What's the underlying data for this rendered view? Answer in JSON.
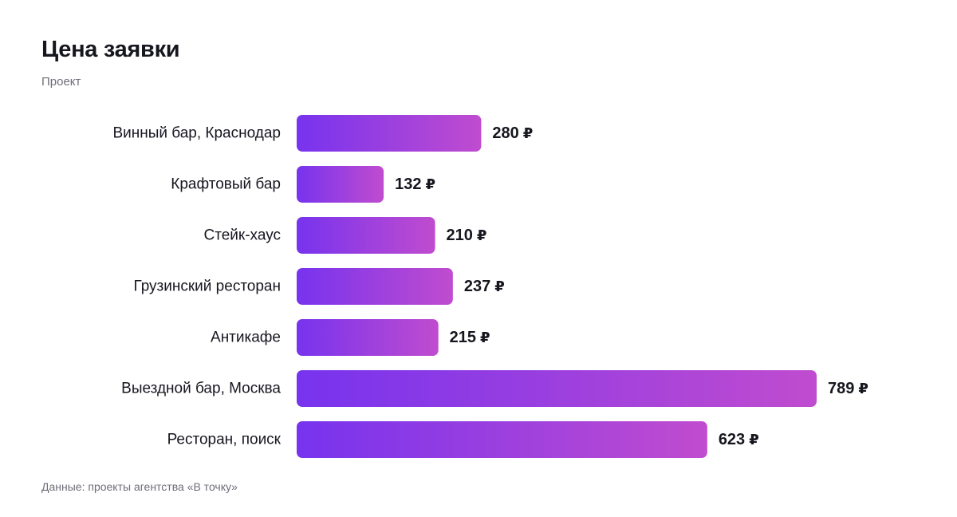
{
  "header": {
    "title": "Цена заявки",
    "subtitle": "Проект"
  },
  "footer": {
    "source": "Данные: проекты агентства «В точку»"
  },
  "colors": {
    "bar_gradient_start": "#7733ee",
    "bar_gradient_end": "#c04ccf",
    "text": "#16161f",
    "muted": "#6e6e7a"
  },
  "chart_data": {
    "type": "bar",
    "orientation": "horizontal",
    "title": "Цена заявки",
    "subtitle": "Проект",
    "unit": "₽",
    "categories": [
      "Винный бар, Краснодар",
      "Крафтовый бар",
      "Стейк-хаус",
      "Грузинский ресторан",
      "Антикафе",
      "Выездной бар, Москва",
      "Ресторан, поиск"
    ],
    "values": [
      280,
      132,
      210,
      237,
      215,
      789,
      623
    ],
    "grid": false,
    "legend": "none"
  }
}
